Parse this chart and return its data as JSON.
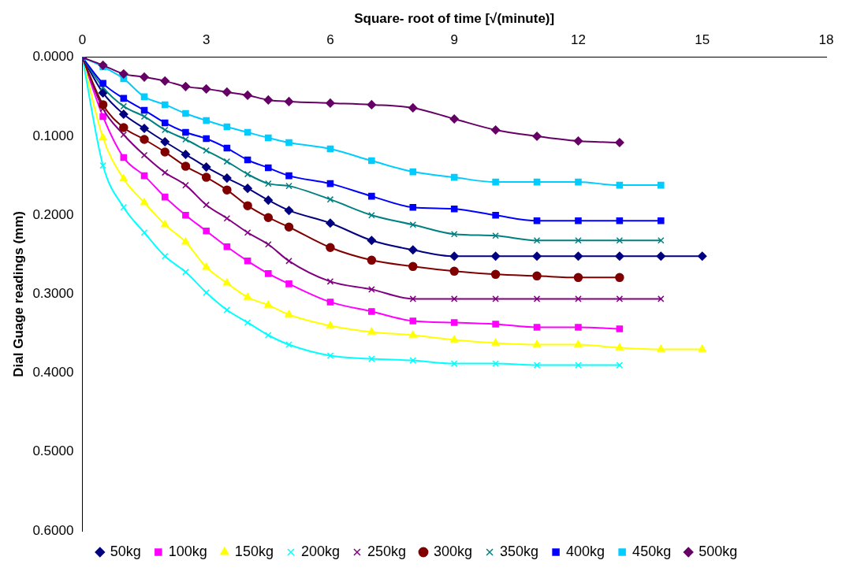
{
  "chart_data": {
    "type": "line",
    "xlabel": "Square- root of time [√(minute)]",
    "ylabel": "Dial Guage readings (mm)",
    "x": [
      0,
      0.5,
      1,
      1.5,
      2,
      2.5,
      3,
      3.5,
      4,
      4.5,
      5,
      6,
      7,
      8,
      9,
      10,
      11,
      12,
      13,
      14,
      15
    ],
    "xlim": [
      0,
      18
    ],
    "xticks": [
      0,
      3,
      6,
      9,
      12,
      15,
      18
    ],
    "ylim": [
      0.6,
      0
    ],
    "yticks": [
      {
        "value": 0,
        "label": "0.0000"
      },
      {
        "value": 0.1,
        "label": "0.1000"
      },
      {
        "value": 0.2,
        "label": "0.2000"
      },
      {
        "value": 0.3,
        "label": "0.3000"
      },
      {
        "value": 0.4,
        "label": "0.4000"
      },
      {
        "value": 0.5,
        "label": "0.5000"
      },
      {
        "value": 0.6,
        "label": "0.6000"
      }
    ],
    "grid": false,
    "legend": "bottom",
    "line_style": "solid",
    "series": [
      {
        "name": "50kg",
        "color": "#000080",
        "marker": "diamond",
        "values": [
          0,
          0.045,
          0.072,
          0.09,
          0.107,
          0.123,
          0.139,
          0.153,
          0.166,
          0.181,
          0.194,
          0.21,
          0.232,
          0.244,
          0.252,
          0.252,
          0.252,
          0.252,
          0.252,
          0.252,
          0.252
        ]
      },
      {
        "name": "100kg",
        "color": "#ff00ff",
        "marker": "square",
        "values": [
          0,
          0.075,
          0.127,
          0.15,
          0.177,
          0.2,
          0.22,
          0.24,
          0.258,
          0.274,
          0.287,
          0.31,
          0.322,
          0.334,
          0.336,
          0.338,
          0.342,
          0.342,
          0.344,
          null,
          null
        ]
      },
      {
        "name": "150kg",
        "color": "#ffff00",
        "marker": "triangle",
        "values": [
          0,
          0.102,
          0.154,
          0.184,
          0.212,
          0.234,
          0.266,
          0.286,
          0.304,
          0.314,
          0.326,
          0.34,
          0.348,
          0.352,
          0.358,
          0.362,
          0.364,
          0.364,
          0.368,
          0.37,
          0.37
        ]
      },
      {
        "name": "200kg",
        "color": "#00ffff",
        "marker": "cross",
        "values": [
          0,
          0.137,
          0.19,
          0.222,
          0.252,
          0.272,
          0.298,
          0.32,
          0.336,
          0.352,
          0.364,
          0.378,
          0.382,
          0.384,
          0.388,
          0.388,
          0.39,
          0.39,
          0.39,
          null,
          null
        ]
      },
      {
        "name": "250kg",
        "color": "#800080",
        "marker": "cross",
        "values": [
          0,
          0.065,
          0.098,
          0.124,
          0.146,
          0.162,
          0.187,
          0.204,
          0.222,
          0.237,
          0.258,
          0.284,
          0.294,
          0.306,
          0.306,
          0.306,
          0.306,
          0.306,
          0.306,
          0.306,
          null
        ]
      },
      {
        "name": "300kg",
        "color": "#800000",
        "marker": "circle",
        "values": [
          0,
          0.06,
          0.089,
          0.104,
          0.12,
          0.138,
          0.152,
          0.168,
          0.188,
          0.203,
          0.215,
          0.241,
          0.257,
          0.265,
          0.271,
          0.275,
          0.277,
          0.279,
          0.279,
          null,
          null
        ]
      },
      {
        "name": "350kg",
        "color": "#008080",
        "marker": "cross",
        "values": [
          0,
          0.038,
          0.062,
          0.075,
          0.092,
          0.104,
          0.118,
          0.132,
          0.148,
          0.16,
          0.163,
          0.18,
          0.2,
          0.212,
          0.224,
          0.226,
          0.232,
          0.232,
          0.232,
          0.232,
          null
        ]
      },
      {
        "name": "400kg",
        "color": "#0000ff",
        "marker": "square",
        "values": [
          0,
          0.033,
          0.052,
          0.067,
          0.083,
          0.095,
          0.103,
          0.115,
          0.13,
          0.14,
          0.15,
          0.16,
          0.176,
          0.19,
          0.192,
          0.2,
          0.207,
          0.207,
          0.207,
          0.207,
          null
        ]
      },
      {
        "name": "450kg",
        "color": "#00ccff",
        "marker": "square",
        "values": [
          0,
          0.012,
          0.027,
          0.05,
          0.06,
          0.071,
          0.08,
          0.088,
          0.095,
          0.102,
          0.108,
          0.116,
          0.131,
          0.145,
          0.152,
          0.158,
          0.158,
          0.158,
          0.162,
          0.162,
          null
        ]
      },
      {
        "name": "500kg",
        "color": "#660066",
        "marker": "diamond",
        "values": [
          0,
          0.01,
          0.021,
          0.025,
          0.03,
          0.037,
          0.04,
          0.044,
          0.048,
          0.054,
          0.056,
          0.058,
          0.06,
          0.064,
          0.078,
          0.092,
          0.1,
          0.106,
          0.108,
          null,
          null
        ]
      }
    ]
  }
}
